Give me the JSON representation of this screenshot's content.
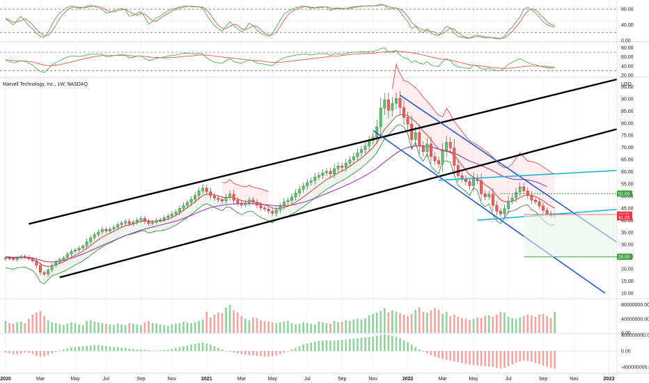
{
  "chart_data": {
    "type": "candlestick",
    "title": "Marvell Technology, Inc., 1W, NASDAQ",
    "currency_label": "USD",
    "colors": {
      "up": "#26a69a",
      "down": "#ef5350",
      "up_soft": "#8ed49a",
      "down_soft": "#f5a3a0",
      "ma_fast": "#e53935",
      "ma_slow": "#9c27b0",
      "trend_black": "#000000",
      "channel_blue": "#1e56d6",
      "level_cyan": "#1fb5d0",
      "support_green": "#43a047",
      "resistance_red": "#f23645"
    },
    "price_axis": {
      "ticks": [
        "95.00",
        "90.00",
        "85.00",
        "80.00",
        "75.00",
        "70.00",
        "65.00",
        "60.00",
        "55.00",
        "50.00",
        "45.00",
        "40.00",
        "35.00",
        "30.00",
        "25.00",
        "20.00",
        "15.00",
        "10.00"
      ],
      "ylim": [
        8,
        98
      ]
    },
    "price_tags": [
      {
        "label": "51.00",
        "price": 51,
        "color": "#43a047"
      },
      {
        "label": "42.35",
        "price": 42.35,
        "color": "#f23645"
      },
      {
        "label": "41.25",
        "price": 41.25,
        "color": "#f23645"
      },
      {
        "label": "25.00",
        "price": 25,
        "color": "#43a047"
      }
    ],
    "time_axis": {
      "labels": [
        {
          "label": "2020",
          "idx": 0,
          "bold": true
        },
        {
          "label": "Mar",
          "idx": 9
        },
        {
          "label": "May",
          "idx": 18
        },
        {
          "label": "Jul",
          "idx": 26
        },
        {
          "label": "Sep",
          "idx": 35
        },
        {
          "label": "Nov",
          "idx": 43
        },
        {
          "label": "2021",
          "idx": 52,
          "bold": true
        },
        {
          "label": "Mar",
          "idx": 61
        },
        {
          "label": "May",
          "idx": 69
        },
        {
          "label": "Jul",
          "idx": 78
        },
        {
          "label": "Sep",
          "idx": 87
        },
        {
          "label": "Nov",
          "idx": 95
        },
        {
          "label": "2022",
          "idx": 104,
          "bold": true
        },
        {
          "label": "Mar",
          "idx": 113
        },
        {
          "label": "May",
          "idx": 121
        },
        {
          "label": "Jul",
          "idx": 130
        },
        {
          "label": "Sep",
          "idx": 139
        },
        {
          "label": "Nov",
          "idx": 147
        },
        {
          "label": "2023",
          "idx": 156,
          "bold": true
        }
      ],
      "total_weeks": 158
    },
    "stoch_axis": {
      "ticks": [
        "80.00",
        "40.00",
        "0.00"
      ],
      "ylim": [
        0,
        100
      ]
    },
    "rsi_axis": {
      "ticks": [
        "80.00",
        "60.00",
        "40.00",
        "20.00"
      ],
      "ylim": [
        20,
        90
      ]
    },
    "volume_axis": {
      "ticks": [
        "80000000.00",
        "40000000.00",
        "0.00"
      ],
      "ylim": [
        0,
        95000000
      ]
    },
    "osc_axis": {
      "ticks": [
        "400000000.00",
        "0.00",
        "-400000000.00"
      ],
      "ylim": [
        -520000000,
        420000000
      ]
    },
    "closes": [
      24.5,
      24.2,
      23.8,
      24.6,
      25.2,
      24.8,
      24.1,
      23.3,
      21.5,
      18.6,
      17.8,
      19.6,
      21.4,
      22.8,
      23.9,
      24.6,
      26.1,
      27.3,
      27.8,
      28.6,
      29.4,
      31.2,
      32.8,
      34.1,
      35.2,
      36.3,
      35.6,
      36.4,
      37.1,
      38.2,
      38.9,
      39.6,
      38.6,
      39.3,
      40.1,
      40.8,
      39.6,
      38.7,
      39.2,
      39.9,
      40.3,
      41.1,
      41.8,
      42.6,
      43.4,
      44.9,
      46.1,
      47.3,
      48.6,
      50.2,
      52.1,
      53.3,
      51.8,
      50.1,
      49.2,
      48.6,
      47.9,
      49.4,
      50.8,
      48.2,
      47.1,
      46.3,
      47.2,
      48.4,
      47.5,
      46.2,
      45.1,
      44.6,
      43.8,
      42.9,
      44.3,
      45.8,
      47.6,
      48.2,
      49.6,
      51.2,
      52.8,
      54.1,
      55.6,
      56.3,
      57.8,
      58.5,
      59.6,
      60.2,
      59.1,
      61.3,
      62.4,
      61.8,
      63.6,
      64.9,
      66.2,
      67.8,
      69.1,
      70.6,
      72.8,
      74.3,
      78.5,
      86.2,
      89.6,
      85.3,
      88.1,
      90.2,
      86.4,
      82.3,
      79.6,
      73.2,
      76.1,
      70.5,
      68.3,
      71.4,
      66.2,
      64.5,
      63.2,
      68.6,
      72.1,
      69.8,
      62.6,
      58.4,
      57.1,
      55.9,
      54.2,
      57.5,
      56.3,
      50.9,
      49.6,
      50.8,
      46.2,
      43.7,
      42.6,
      44.8,
      47.9,
      49.2,
      51.6,
      53.8,
      52.1,
      50.4,
      48.3,
      47.6,
      45.9,
      44.1,
      42.7,
      41.9,
      42.35
    ],
    "ma_fast": [
      24.8,
      24.6,
      24.5,
      24.5,
      24.6,
      24.7,
      24.5,
      24.1,
      23.2,
      22.1,
      21.3,
      21.0,
      21.2,
      21.7,
      22.3,
      22.9,
      23.8,
      24.7,
      25.6,
      26.4,
      27.3,
      28.4,
      29.6,
      30.8,
      32.0,
      33.1,
      33.9,
      34.7,
      35.5,
      36.3,
      37.1,
      37.8,
      38.1,
      38.5,
      39.0,
      39.6,
      39.8,
      39.7,
      39.6,
      39.6,
      39.7,
      40.0,
      40.5,
      41.2,
      42.0,
      43.0,
      44.1,
      45.2,
      46.4,
      47.6,
      49.0,
      50.2,
      50.8,
      50.8,
      50.5,
      50.1,
      49.6,
      49.4,
      49.5,
      49.2,
      48.7,
      48.1,
      47.8,
      47.7,
      47.6,
      47.3,
      46.9,
      46.4,
      45.8,
      45.1,
      44.8,
      44.9,
      45.3,
      45.8,
      46.5,
      47.4,
      48.5,
      49.6,
      50.8,
      52.0,
      53.2,
      54.4,
      55.6,
      56.8,
      57.6,
      58.6,
      59.5,
      60.3,
      61.2,
      62.2,
      63.3,
      64.4,
      65.6,
      66.9,
      68.4,
      69.9,
      71.9,
      74.7,
      77.5,
      79.2,
      81.0,
      82.8,
      83.4,
      83.5,
      83.1,
      81.8,
      80.6,
      78.8,
      76.7,
      75.1,
      73.2,
      71.1,
      69.3,
      68.5,
      68.4,
      67.9,
      66.6,
      64.8,
      62.7,
      60.6,
      58.7,
      57.8,
      57.0,
      55.9,
      54.6,
      53.6,
      52.0,
      50.2,
      48.5,
      47.6,
      47.6,
      47.8,
      48.4,
      49.4,
      50.1,
      50.4,
      50.2,
      49.8,
      49.0,
      48.0,
      46.9,
      45.8,
      45.0
    ],
    "ma_slow": [
      25.0,
      24.9,
      24.8,
      24.8,
      24.8,
      24.8,
      24.7,
      24.5,
      24.1,
      23.6,
      23.1,
      22.9,
      22.9,
      23.0,
      23.2,
      23.5,
      23.9,
      24.4,
      24.9,
      25.5,
      26.1,
      26.8,
      27.5,
      28.2,
      28.9,
      29.7,
      30.4,
      31.0,
      31.7,
      32.4,
      33.0,
      33.7,
      34.3,
      34.8,
      35.4,
      35.9,
      36.4,
      36.8,
      37.2,
      37.6,
      38.0,
      38.4,
      38.8,
      39.2,
      39.7,
      40.2,
      40.8,
      41.4,
      42.0,
      42.7,
      43.4,
      44.1,
      44.7,
      45.2,
      45.6,
      45.9,
      46.2,
      46.4,
      46.6,
      46.7,
      46.8,
      46.8,
      46.8,
      46.8,
      46.8,
      46.7,
      46.6,
      46.5,
      46.3,
      46.1,
      46.0,
      45.9,
      46.0,
      46.1,
      46.3,
      46.6,
      47.0,
      47.4,
      47.9,
      48.5,
      49.1,
      49.7,
      50.4,
      51.0,
      51.7,
      52.3,
      53.0,
      53.7,
      54.4,
      55.1,
      55.9,
      56.7,
      57.5,
      58.4,
      59.3,
      60.3,
      61.4,
      62.7,
      64.0,
      65.2,
      66.4,
      67.6,
      68.6,
      69.4,
      70.0,
      70.3,
      70.6,
      70.7,
      70.6,
      70.5,
      70.2,
      69.8,
      69.3,
      68.9,
      68.6,
      68.2,
      67.6,
      66.9,
      66.1,
      65.2,
      64.4,
      63.8,
      63.2,
      62.5,
      61.8,
      61.2,
      60.4,
      59.5,
      58.6,
      57.9,
      57.4,
      57.0,
      56.8,
      56.8,
      56.8,
      56.6,
      56.3,
      55.9,
      55.3,
      54.6,
      53.8
    ],
    "stoch_k": [
      55,
      48,
      40,
      52,
      62,
      50,
      38,
      30,
      18,
      10,
      8,
      20,
      40,
      58,
      70,
      78,
      85,
      88,
      86,
      82,
      84,
      88,
      90,
      87,
      84,
      80,
      70,
      72,
      76,
      80,
      82,
      78,
      62,
      64,
      70,
      74,
      60,
      42,
      48,
      58,
      62,
      70,
      76,
      80,
      82,
      86,
      88,
      88,
      87,
      86,
      86,
      82,
      66,
      50,
      38,
      30,
      24,
      36,
      48,
      38,
      30,
      22,
      30,
      44,
      38,
      26,
      18,
      14,
      10,
      18,
      34,
      52,
      68,
      74,
      80,
      84,
      86,
      88,
      86,
      82,
      84,
      86,
      86,
      86,
      76,
      82,
      84,
      80,
      82,
      84,
      86,
      87,
      88,
      88,
      89,
      88,
      90,
      92,
      90,
      80,
      82,
      84,
      74,
      60,
      48,
      30,
      36,
      24,
      20,
      30,
      18,
      14,
      12,
      24,
      36,
      32,
      18,
      10,
      8,
      6,
      5,
      12,
      14,
      8,
      6,
      8,
      6,
      4,
      4,
      10,
      24,
      34,
      48,
      60,
      80,
      85,
      78,
      70,
      60,
      48,
      40,
      36,
      34
    ],
    "stoch_d": [
      56,
      52,
      47,
      47,
      51,
      55,
      50,
      40,
      29,
      19,
      12,
      13,
      23,
      39,
      56,
      69,
      78,
      84,
      86,
      85,
      84,
      85,
      87,
      88,
      87,
      84,
      78,
      74,
      73,
      76,
      79,
      80,
      74,
      68,
      65,
      69,
      68,
      59,
      50,
      49,
      56,
      63,
      69,
      75,
      79,
      83,
      85,
      87,
      88,
      87,
      86,
      85,
      78,
      66,
      51,
      39,
      31,
      30,
      36,
      41,
      39,
      30,
      27,
      32,
      37,
      36,
      27,
      19,
      14,
      14,
      21,
      35,
      51,
      65,
      74,
      79,
      83,
      86,
      87,
      85,
      84,
      84,
      85,
      86,
      83,
      81,
      81,
      82,
      82,
      82,
      84,
      86,
      87,
      88,
      88,
      88,
      89,
      90,
      90,
      87,
      84,
      82,
      80,
      73,
      61,
      46,
      38,
      30,
      27,
      25,
      23,
      21,
      15,
      17,
      24,
      31,
      29,
      20,
      12,
      8,
      6,
      8,
      10,
      11,
      9,
      7,
      7,
      6,
      5,
      6,
      13,
      23,
      35,
      47,
      63,
      75,
      81,
      78,
      69,
      59,
      49,
      41,
      37
    ],
    "rsi": [
      52,
      50,
      47,
      49,
      52,
      50,
      46,
      42,
      34,
      28,
      26,
      34,
      42,
      48,
      52,
      56,
      60,
      62,
      62,
      61,
      62,
      64,
      66,
      66,
      66,
      65,
      60,
      61,
      63,
      64,
      65,
      64,
      58,
      59,
      62,
      62,
      57,
      52,
      54,
      57,
      58,
      60,
      62,
      63,
      64,
      66,
      68,
      68,
      67,
      66,
      68,
      66,
      58,
      52,
      49,
      47,
      46,
      52,
      56,
      50,
      48,
      46,
      50,
      54,
      51,
      47,
      45,
      44,
      42,
      41,
      48,
      54,
      58,
      60,
      62,
      64,
      65,
      66,
      66,
      64,
      66,
      67,
      67,
      67,
      63,
      67,
      67,
      65,
      68,
      69,
      70,
      70,
      71,
      71,
      72,
      72,
      74,
      78,
      80,
      70,
      72,
      74,
      64,
      58,
      56,
      48,
      52,
      46,
      44,
      50,
      42,
      40,
      39,
      50,
      56,
      52,
      42,
      38,
      37,
      36,
      34,
      42,
      40,
      34,
      33,
      36,
      32,
      30,
      30,
      36,
      44,
      48,
      53,
      56,
      52,
      48,
      44,
      43,
      40,
      38,
      36,
      36,
      37
    ],
    "rsi_signal": [
      54,
      53,
      52,
      51,
      51,
      51,
      50,
      49,
      47,
      44,
      42,
      41,
      41,
      42,
      43,
      45,
      47,
      49,
      51,
      53,
      55,
      57,
      59,
      61,
      62,
      63,
      63,
      63,
      63,
      63,
      63,
      63,
      63,
      62,
      62,
      62,
      61,
      60,
      59,
      59,
      58,
      58,
      58,
      59,
      59,
      60,
      61,
      62,
      62,
      63,
      64,
      64,
      64,
      63,
      62,
      61,
      60,
      59,
      58,
      57,
      56,
      55,
      54,
      53,
      52,
      52,
      51,
      50,
      49,
      48,
      48,
      48,
      49,
      50,
      51,
      52,
      53,
      54,
      55,
      56,
      57,
      58,
      59,
      60,
      61,
      62,
      62,
      63,
      64,
      65,
      66,
      66,
      67,
      67,
      68,
      68,
      69,
      70,
      71,
      71,
      71,
      72,
      72,
      71,
      70,
      69,
      68,
      66,
      64,
      62,
      60,
      58,
      56,
      55,
      54,
      53,
      51,
      49,
      47,
      45,
      43,
      42,
      41,
      40,
      39,
      38,
      37,
      36,
      35,
      35,
      35,
      36,
      37,
      38,
      39,
      40,
      40,
      40,
      40,
      40,
      39,
      38,
      38
    ],
    "volumes": [
      34,
      28,
      26,
      30,
      32,
      28,
      40,
      52,
      58,
      62,
      48,
      36,
      30,
      28,
      24,
      22,
      26,
      30,
      28,
      24,
      22,
      34,
      36,
      32,
      30,
      28,
      26,
      24,
      22,
      26,
      24,
      22,
      28,
      26,
      24,
      22,
      30,
      34,
      28,
      26,
      24,
      22,
      20,
      24,
      26,
      28,
      32,
      30,
      28,
      30,
      34,
      38,
      60,
      44,
      52,
      58,
      56,
      72,
      80,
      64,
      58,
      48,
      40,
      36,
      44,
      42,
      36,
      34,
      32,
      30,
      28,
      30,
      32,
      34,
      28,
      24,
      26,
      30,
      28,
      26,
      24,
      32,
      30,
      28,
      26,
      34,
      30,
      32,
      36,
      34,
      38,
      40,
      38,
      42,
      50,
      54,
      58,
      62,
      70,
      58,
      64,
      60,
      56,
      52,
      48,
      54,
      66,
      72,
      60,
      58,
      64,
      70,
      66,
      54,
      60,
      48,
      52,
      46,
      42,
      40,
      36,
      40,
      44,
      42,
      48,
      50,
      46,
      52,
      60,
      58,
      46,
      42,
      40,
      44,
      48,
      52,
      50,
      46,
      52,
      54,
      48,
      42,
      60
    ],
    "osc": [
      -40,
      -60,
      -80,
      -80,
      -60,
      -40,
      -50,
      -80,
      -120,
      -140,
      -130,
      -100,
      -60,
      -20,
      10,
      40,
      70,
      90,
      100,
      110,
      120,
      130,
      140,
      150,
      150,
      140,
      120,
      110,
      100,
      100,
      90,
      80,
      60,
      50,
      40,
      40,
      30,
      20,
      10,
      10,
      20,
      30,
      40,
      60,
      80,
      100,
      120,
      140,
      160,
      180,
      200,
      210,
      190,
      160,
      120,
      80,
      40,
      0,
      -20,
      -40,
      -60,
      -80,
      -90,
      -100,
      -110,
      -120,
      -130,
      -140,
      -140,
      -130,
      -110,
      -80,
      -40,
      0,
      40,
      80,
      120,
      160,
      190,
      210,
      230,
      250,
      260,
      270,
      260,
      260,
      270,
      280,
      290,
      300,
      310,
      320,
      330,
      340,
      350,
      360,
      380,
      400,
      420,
      400,
      380,
      360,
      320,
      270,
      220,
      160,
      100,
      40,
      -20,
      -60,
      -100,
      -140,
      -170,
      -200,
      -220,
      -240,
      -260,
      -280,
      -300,
      -320,
      -340,
      -350,
      -360,
      -370,
      -380,
      -390,
      -400,
      -420,
      -440,
      -420,
      -380,
      -330,
      -290,
      -260,
      -240,
      -250,
      -270,
      -300,
      -330,
      -360,
      -390,
      -420,
      -440
    ]
  }
}
